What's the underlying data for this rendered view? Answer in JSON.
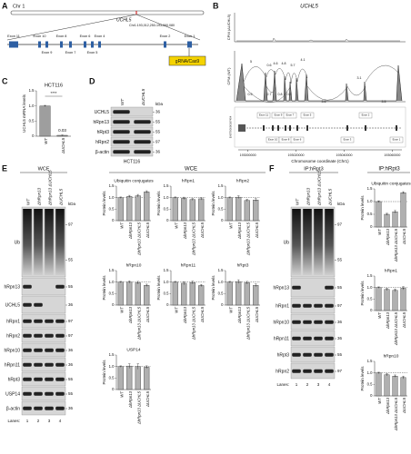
{
  "panel_labels": [
    "A",
    "B",
    "C",
    "D",
    "E",
    "F"
  ],
  "panel_a": {
    "chromosome": "Chr 1",
    "gene": "UCHL5",
    "coordinates": "Chr1:193,012,250-193,060,080",
    "exons": [
      "Exon 11",
      "Exon 10",
      "Exon 9",
      "Exon 8",
      "Exon 7",
      "Exon 6",
      "Exon 5",
      "Exon 4",
      "Exon 2",
      "Exon 1"
    ],
    "guide": "gRNA/Cas9"
  },
  "panel_b": {
    "title": "UCHL5",
    "track_labels": [
      "CPM (ΔUCHL5)",
      "CPM (WT)"
    ],
    "junction_counts": [
      5,
      0.6,
      4.6,
      4.8,
      5.7,
      4.1,
      0.9,
      2.7,
      0.8,
      0.3,
      3.6,
      3.1,
      3.5
    ],
    "transcript": "ENST00000367454",
    "exons": [
      "Exon 11",
      "Exon 10",
      "Exon 9",
      "Exon 8",
      "Exon 7",
      "Exon 6",
      "Exon 5",
      "Exon 3",
      "Exon 2",
      "Exon 1"
    ],
    "x_label": "Chromosome coordinate (Chr1)",
    "xlim": [
      192996000,
      193064000
    ],
    "xticks": [
      193000000,
      193020000,
      193040000,
      193060000
    ]
  },
  "panel_d": {
    "lanes": [
      "WT",
      "ΔUCHL5"
    ],
    "kda_title": "kDa",
    "rows": [
      {
        "label": "UCHL5",
        "kda": [
          36
        ]
      },
      {
        "label": "hRpn13",
        "kda": [
          55
        ]
      },
      {
        "label": "hRpt3",
        "kda": [
          55
        ]
      },
      {
        "label": "hRpn2",
        "kda": [
          97
        ]
      },
      {
        "label": "β-actin",
        "kda": [
          36
        ]
      }
    ],
    "cell_line": "HCT116"
  },
  "panel_e": {
    "title": "WCE",
    "charts_title": "WCE",
    "lanes": [
      "WT",
      "ΔhRpn13",
      "ΔhRpn13 ΔUCHL5",
      "ΔUCHL5"
    ],
    "kda_title": "kDa",
    "rows": [
      {
        "label": "Ub",
        "kda": [
          97,
          55
        ]
      },
      {
        "label": "hRpn13",
        "kda": [
          55
        ]
      },
      {
        "label": "UCHL5",
        "kda": [
          36
        ]
      },
      {
        "label": "hRpn1",
        "kda": [
          97
        ]
      },
      {
        "label": "hRpn2",
        "kda": [
          97
        ]
      },
      {
        "label": "hRpn10",
        "kda": [
          36
        ]
      },
      {
        "label": "hRpn11",
        "kda": [
          36
        ]
      },
      {
        "label": "hRpt3",
        "kda": [
          55
        ]
      },
      {
        "label": "USP14",
        "kda": [
          55
        ]
      },
      {
        "label": "β-actin",
        "kda": [
          36
        ]
      }
    ],
    "lanes_label": "Lanes:",
    "lane_numbers": [
      1,
      2,
      3,
      4
    ]
  },
  "panel_f": {
    "title": "IP:hRpt3",
    "charts_title": "IP:hRpt3",
    "lanes": [
      "WT",
      "ΔhRpn13",
      "ΔhRpn13 ΔUCHL5",
      "ΔUCHL5"
    ],
    "kda_title": "kDa",
    "rows": [
      {
        "label": "Ub",
        "kda": [
          97,
          55
        ]
      },
      {
        "label": "hRpn13",
        "kda": [
          55
        ]
      },
      {
        "label": "hRpn1",
        "kda": [
          97
        ]
      },
      {
        "label": "hRpn10",
        "kda": [
          36
        ]
      },
      {
        "label": "hRpn11",
        "kda": [
          36
        ]
      },
      {
        "label": "hRpt3",
        "kda": [
          55
        ]
      },
      {
        "label": "hRpn2",
        "kda": [
          97
        ]
      }
    ],
    "lanes_label": "Lanes:",
    "lane_numbers": [
      1,
      2,
      3,
      4
    ]
  },
  "chart_data": [
    {
      "type": "bar",
      "title": "HCT116",
      "ylabel": "UCHL5 mRNA levels",
      "categories": [
        "WT",
        "ΔUCHL5"
      ],
      "values": [
        1,
        0.03
      ],
      "errors": [
        0.02,
        0.01
      ],
      "value_labels": [
        null,
        "0.03"
      ],
      "annotation": "****",
      "ylim": [
        0,
        1.5
      ],
      "yticks": [
        0,
        0.5,
        {
          "value": 1,
          "label": "1.0"
        },
        1.5
      ],
      "color": "#9e9e9e"
    },
    {
      "type": "bar",
      "title": "Ubiquitin conjugates",
      "ylabel": "Protein levels",
      "categories": [
        "WT",
        "ΔhRpn13",
        "ΔhRpn13 ΔUCHL5",
        "ΔUCHL5"
      ],
      "values": [
        1,
        1.05,
        1.08,
        1.25
      ],
      "errors": [
        0.03,
        0.05,
        0.06,
        0.05
      ],
      "reference": 1,
      "ylim": [
        0,
        1.5
      ],
      "yticks": [
        0,
        0.5,
        {
          "value": 1,
          "label": "1.0"
        },
        1.5
      ],
      "color": "#b0b0b0"
    },
    {
      "type": "bar",
      "title": "hRpn1",
      "ylabel": "Protein levels",
      "categories": [
        "WT",
        "ΔhRpn13",
        "ΔhRpn13 ΔUCHL5",
        "ΔUCHL5"
      ],
      "values": [
        1,
        0.97,
        0.92,
        0.95
      ],
      "errors": [
        0.03,
        0.05,
        0.04,
        0.05
      ],
      "reference": 1,
      "ylim": [
        0,
        1.5
      ],
      "yticks": [
        0,
        0.5,
        {
          "value": 1,
          "label": "1.0"
        },
        1.5
      ],
      "color": "#b0b0b0"
    },
    {
      "type": "bar",
      "title": "hRpn2",
      "ylabel": "Protein levels",
      "categories": [
        "WT",
        "ΔhRpn13",
        "ΔhRpn13 ΔUCHL5",
        "ΔUCHL5"
      ],
      "values": [
        1,
        1.02,
        0.88,
        0.9
      ],
      "errors": [
        0.03,
        0.06,
        0.05,
        0.06
      ],
      "reference": 1,
      "ylim": [
        0,
        1.5
      ],
      "yticks": [
        0,
        0.5,
        {
          "value": 1,
          "label": "1.0"
        },
        1.5
      ],
      "color": "#b0b0b0"
    },
    {
      "type": "bar",
      "title": "hRpn10",
      "ylabel": "Protein levels",
      "categories": [
        "WT",
        "ΔhRpn13",
        "ΔhRpn13 ΔUCHL5",
        "ΔUCHL5"
      ],
      "values": [
        1,
        1.0,
        0.97,
        0.86
      ],
      "errors": [
        0.03,
        0.05,
        0.06,
        0.05
      ],
      "reference": 1,
      "ylim": [
        0,
        1.5
      ],
      "yticks": [
        0,
        0.5,
        {
          "value": 1,
          "label": "1.0"
        },
        1.5
      ],
      "color": "#b0b0b0"
    },
    {
      "type": "bar",
      "title": "hRpn11",
      "ylabel": "Protein levels",
      "categories": [
        "WT",
        "ΔhRpn13",
        "ΔhRpn13 ΔUCHL5",
        "ΔUCHL5"
      ],
      "values": [
        1,
        0.95,
        0.98,
        0.85
      ],
      "errors": [
        0.03,
        0.07,
        0.06,
        0.05
      ],
      "reference": 1,
      "ylim": [
        0,
        1.5
      ],
      "yticks": [
        0,
        0.5,
        {
          "value": 1,
          "label": "1.0"
        },
        1.5
      ],
      "color": "#b0b0b0"
    },
    {
      "type": "bar",
      "title": "hRpt3",
      "ylabel": "Protein levels",
      "categories": [
        "WT",
        "ΔhRpn13",
        "ΔhRpn13 ΔUCHL5",
        "ΔUCHL5"
      ],
      "values": [
        1,
        1.02,
        0.97,
        0.86
      ],
      "errors": [
        0.03,
        0.08,
        0.06,
        0.06
      ],
      "reference": 1,
      "ylim": [
        0,
        1.5
      ],
      "yticks": [
        0,
        0.5,
        {
          "value": 1,
          "label": "1.0"
        },
        1.5
      ],
      "color": "#b0b0b0"
    },
    {
      "type": "bar",
      "title": "USP14",
      "ylabel": "Protein levels",
      "categories": [
        "WT",
        "ΔhRpn13",
        "ΔhRpn13 ΔUCHL5",
        "ΔUCHL5"
      ],
      "values": [
        1,
        1.02,
        1.0,
        0.97
      ],
      "errors": [
        0.03,
        0.1,
        0.12,
        0.06
      ],
      "reference": 1,
      "ylim": [
        0,
        1.5
      ],
      "yticks": [
        0,
        0.5,
        {
          "value": 1,
          "label": "1.0"
        },
        1.5
      ],
      "color": "#b0b0b0"
    },
    {
      "type": "bar",
      "title": "Ubiquitin conjugates",
      "ylabel": "Protein levels",
      "categories": [
        "WT",
        "ΔhRpn13",
        "ΔhRpn13 ΔUCHL5",
        "ΔUCHL5"
      ],
      "values": [
        1,
        0.5,
        0.6,
        1.35
      ],
      "errors": [
        0.03,
        0.04,
        0.05,
        0.04
      ],
      "reference": 1,
      "ylim": [
        0,
        1.5
      ],
      "yticks": [
        0,
        0.5,
        {
          "value": 1,
          "label": "1.0"
        },
        1.5
      ],
      "color": "#b0b0b0"
    },
    {
      "type": "bar",
      "title": "hRpn1",
      "ylabel": "Protein levels",
      "categories": [
        "WT",
        "ΔhRpn13",
        "ΔhRpn13 ΔUCHL5",
        "ΔUCHL5"
      ],
      "values": [
        1,
        0.92,
        0.88,
        0.97
      ],
      "errors": [
        0.03,
        0.05,
        0.06,
        0.07
      ],
      "reference": 1,
      "ylim": [
        0,
        1.5
      ],
      "yticks": [
        0,
        0.5,
        {
          "value": 1,
          "label": "1.0"
        },
        1.5
      ],
      "color": "#b0b0b0"
    },
    {
      "type": "bar",
      "title": "hRpn10",
      "ylabel": "Protein levels",
      "categories": [
        "WT",
        "ΔhRpn13",
        "ΔhRpn13 ΔUCHL5",
        "ΔUCHL5"
      ],
      "values": [
        1,
        0.92,
        0.86,
        0.8
      ],
      "errors": [
        0.03,
        0.05,
        0.05,
        0.06
      ],
      "reference": 1,
      "ylim": [
        0,
        1.5
      ],
      "yticks": [
        0,
        0.5,
        {
          "value": 1,
          "label": "1.0"
        },
        1.5
      ],
      "color": "#b0b0b0"
    }
  ]
}
